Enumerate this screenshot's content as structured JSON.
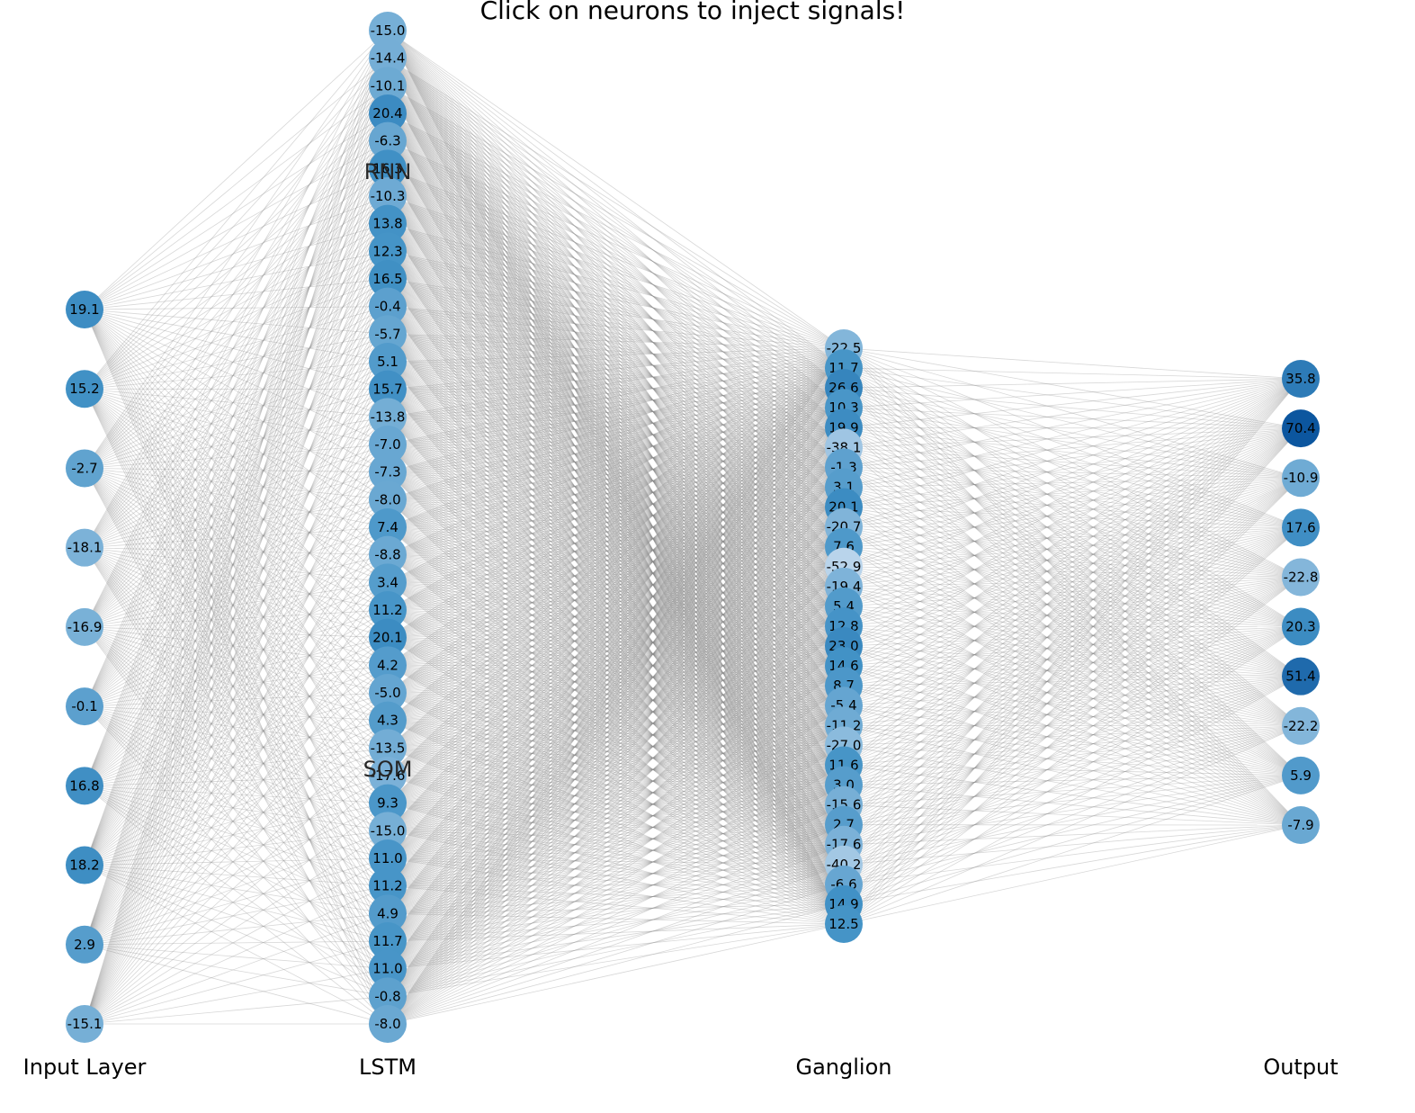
{
  "title": "Click on neurons to inject signals!",
  "layers": [
    {
      "id": "input",
      "label": "Input Layer",
      "values": [
        "19.1",
        "15.2",
        "-2.7",
        "-18.1",
        "-16.9",
        "-0.1",
        "16.8",
        "18.2",
        "2.9",
        "-15.1"
      ]
    },
    {
      "id": "lstm",
      "label": "LSTM",
      "sub_labels": [
        "RNN",
        "SOM"
      ],
      "values": [
        "-15.0",
        "-14.4",
        "-10.1",
        "20.4",
        "-6.3",
        "16.3",
        "-10.3",
        "13.8",
        "12.3",
        "16.5",
        "-0.4",
        "-5.7",
        "5.1",
        "15.7",
        "-13.8",
        "-7.0",
        "-7.3",
        "-8.0",
        "7.4",
        "-8.8",
        "3.4",
        "11.2",
        "20.1",
        "4.2",
        "-5.0",
        "4.3",
        "-13.5",
        "-17.6",
        "9.3",
        "-15.0",
        "11.0",
        "11.2",
        "4.9",
        "11.7",
        "11.0",
        "-0.8",
        "-8.0"
      ]
    },
    {
      "id": "ganglion",
      "label": "Ganglion",
      "values": [
        "-22.5",
        "11.7",
        "26.6",
        "10.3",
        "19.9",
        "-38.1",
        "-1.3",
        "3.1",
        "20.1",
        "-20.7",
        "7.6",
        "-52.9",
        "-19.4",
        "5.4",
        "12.8",
        "23.0",
        "14.6",
        "8.7",
        "-5.4",
        "-11.2",
        "-27.0",
        "11.6",
        "3.0",
        "-15.6",
        "2.7",
        "-17.6",
        "-40.2",
        "-6.6",
        "14.9",
        "12.5"
      ]
    },
    {
      "id": "output",
      "label": "Output",
      "values": [
        "35.8",
        "70.4",
        "-10.9",
        "17.6",
        "-22.8",
        "20.3",
        "51.4",
        "-22.2",
        "5.9",
        "-7.9"
      ]
    }
  ],
  "colors": {
    "neuron_light": "#c6dbef",
    "neuron_dark": "#08519c",
    "edge": "#8c8c8c",
    "text": "#000000"
  }
}
